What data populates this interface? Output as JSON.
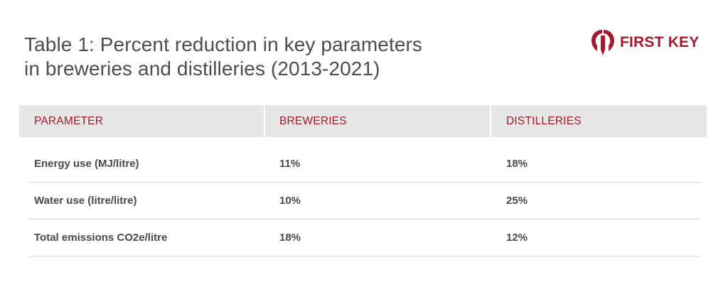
{
  "title": {
    "line1": "Table 1: Percent reduction in key parameters",
    "line2": "in breweries and distilleries (2013-2021)"
  },
  "logo": {
    "text": "FIRST KEY",
    "icon": "first-key-logo-mark",
    "color": "#a5192d"
  },
  "table": {
    "headers": [
      "PARAMETER",
      "BREWERIES",
      "DISTILLERIES"
    ],
    "rows": [
      [
        "Energy use (MJ/litre)",
        "11%",
        "18%"
      ],
      [
        "Water use (litre/litre)",
        "10%",
        "25%"
      ],
      [
        "Total emissions CO2e/litre",
        "18%",
        "12%"
      ]
    ]
  },
  "colors": {
    "accent": "#a5192d",
    "header_bg": "#e6e6e6",
    "text": "#4a4a4a"
  }
}
